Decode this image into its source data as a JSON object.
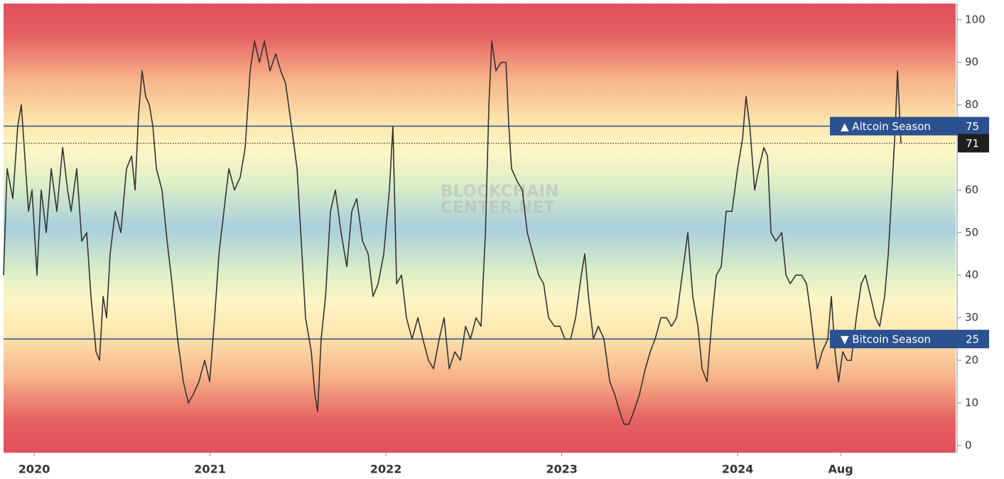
{
  "chart_data": {
    "type": "line",
    "watermark": [
      "BLOCKCHAIN",
      "CENTER.NET"
    ],
    "x": [
      2019.826,
      2019.846,
      2019.879,
      2019.907,
      2019.927,
      2019.947,
      2019.968,
      2019.988,
      2020.016,
      2020.04,
      2020.069,
      2020.097,
      2020.129,
      2020.162,
      2020.19,
      2020.21,
      2020.242,
      2020.271,
      2020.299,
      2020.323,
      2020.352,
      2020.372,
      2020.392,
      2020.412,
      2020.432,
      2020.461,
      2020.493,
      2020.525,
      2020.554,
      2020.574,
      2020.594,
      2020.614,
      2020.634,
      2020.655,
      2020.675,
      2020.695,
      2020.727,
      2020.756,
      2020.784,
      2020.816,
      2020.848,
      2020.877,
      2020.905,
      2020.937,
      2020.97,
      2020.998,
      2021.026,
      2021.051,
      2021.079,
      2021.107,
      2021.139,
      2021.172,
      2021.2,
      2021.228,
      2021.253,
      2021.281,
      2021.309,
      2021.341,
      2021.374,
      2021.402,
      2021.43,
      2021.463,
      2021.495,
      2021.523,
      2021.543,
      2021.576,
      2021.596,
      2021.612,
      2021.632,
      2021.657,
      2021.685,
      2021.713,
      2021.745,
      2021.778,
      2021.806,
      2021.834,
      2021.867,
      2021.899,
      2021.927,
      2021.956,
      2021.988,
      2022.02,
      2022.04,
      2022.061,
      2022.089,
      2022.117,
      2022.149,
      2022.182,
      2022.21,
      2022.242,
      2022.271,
      2022.303,
      2022.331,
      2022.36,
      2022.392,
      2022.424,
      2022.453,
      2022.481,
      2022.513,
      2022.541,
      2022.566,
      2022.586,
      2022.602,
      2022.626,
      2022.655,
      2022.683,
      2022.699,
      2022.715,
      2022.747,
      2022.776,
      2022.804,
      2022.836,
      2022.869,
      2022.897,
      2022.925,
      2022.958,
      2022.99,
      2023.018,
      2023.051,
      2023.079,
      2023.111,
      2023.131,
      2023.152,
      2023.18,
      2023.208,
      2023.24,
      2023.273,
      2023.301,
      2023.329,
      2023.354,
      2023.382,
      2023.41,
      2023.442,
      2023.475,
      2023.503,
      2023.531,
      2023.564,
      2023.596,
      2023.624,
      2023.653,
      2023.685,
      2023.717,
      2023.745,
      2023.774,
      2023.798,
      2023.826,
      2023.855,
      2023.879,
      2023.907,
      2023.935,
      2023.968,
      2024.0,
      2024.028,
      2024.048,
      2024.069,
      2024.097,
      2024.121,
      2024.149,
      2024.17,
      2024.19,
      2024.218,
      2024.251,
      2024.275,
      2024.299,
      2024.331,
      2024.364,
      2024.392,
      2024.412,
      2024.432,
      2024.453,
      2024.481,
      2024.513,
      2024.533,
      2024.554,
      2024.574,
      2024.598,
      2024.622,
      2024.646,
      2024.675,
      2024.703,
      2024.727,
      2024.756,
      2024.784,
      2024.808,
      2024.836,
      2024.857,
      2024.877,
      2024.897,
      2024.909,
      2024.921,
      2024.929
    ],
    "series": [
      {
        "color": "#333333",
        "values": [
          40,
          65,
          58,
          75,
          80,
          68,
          55,
          60,
          40,
          60,
          50,
          65,
          55,
          70,
          60,
          55,
          65,
          48,
          50,
          35,
          22,
          20,
          35,
          30,
          45,
          55,
          50,
          65,
          68,
          60,
          78,
          88,
          82,
          80,
          75,
          65,
          60,
          48,
          38,
          25,
          15,
          10,
          12,
          15,
          20,
          15,
          30,
          45,
          55,
          65,
          60,
          63,
          70,
          88,
          95,
          90,
          95,
          88,
          92,
          88,
          85,
          75,
          65,
          45,
          30,
          22,
          12,
          8,
          25,
          35,
          55,
          60,
          50,
          42,
          55,
          58,
          48,
          45,
          35,
          38,
          45,
          60,
          75,
          38,
          40,
          30,
          25,
          30,
          25,
          20,
          18,
          25,
          30,
          18,
          22,
          20,
          28,
          25,
          30,
          28,
          50,
          80,
          95,
          88,
          90,
          90,
          75,
          65,
          62,
          60,
          50,
          45,
          40,
          38,
          30,
          28,
          28,
          25,
          25,
          30,
          40,
          45,
          35,
          25,
          28,
          25,
          15,
          12,
          8,
          5,
          5,
          8,
          12,
          18,
          22,
          25,
          30,
          30,
          28,
          30,
          40,
          50,
          35,
          28,
          18,
          15,
          30,
          40,
          42,
          55,
          55,
          65,
          72,
          82,
          75,
          60,
          65,
          70,
          68,
          50,
          48,
          50,
          40,
          38,
          40,
          40,
          38,
          32,
          25,
          18,
          22,
          25,
          35,
          22,
          15,
          22,
          20,
          20,
          30,
          38,
          40,
          35,
          30,
          28,
          35,
          45,
          60,
          75,
          88,
          78,
          71
        ]
      }
    ],
    "reference_lines": [
      {
        "value": 75,
        "label": "▲ Altcoin Season",
        "color": "#2c5191"
      },
      {
        "value": 25,
        "label": "▼ Bitcoin Season",
        "color": "#2c5191"
      }
    ],
    "xlim": [
      2019.826,
      2025.24
    ],
    "xticks": [
      2020,
      2021,
      2022,
      2023,
      2024,
      {
        "value": 2024.586,
        "label": "Aug"
      }
    ],
    "ylim": [
      -1.7,
      103.8
    ],
    "yticks": [
      0,
      10,
      20,
      30,
      40,
      50,
      60,
      70,
      80,
      90,
      100
    ],
    "grid": false
  }
}
